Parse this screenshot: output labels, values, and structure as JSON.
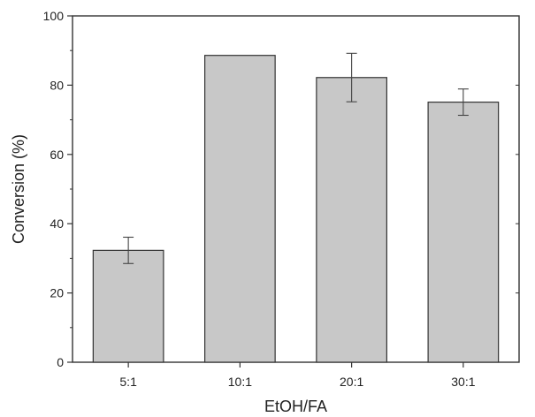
{
  "chart_data": {
    "type": "bar",
    "title": "",
    "xlabel": "EtOH/FA",
    "ylabel": "Conversion (%)",
    "categories": [
      "5:1",
      "10:1",
      "20:1",
      "30:1"
    ],
    "values": [
      32.3,
      88.6,
      82.2,
      75.1
    ],
    "errors": [
      3.8,
      0,
      7.0,
      3.8
    ],
    "ylim": [
      0,
      100
    ],
    "yticks": [
      0,
      20,
      40,
      60,
      80,
      100
    ],
    "grid": false,
    "legend": "none",
    "bar_color": "#c8c8c8",
    "bar_edge_color": "#333333",
    "axis_color": "#333333"
  }
}
